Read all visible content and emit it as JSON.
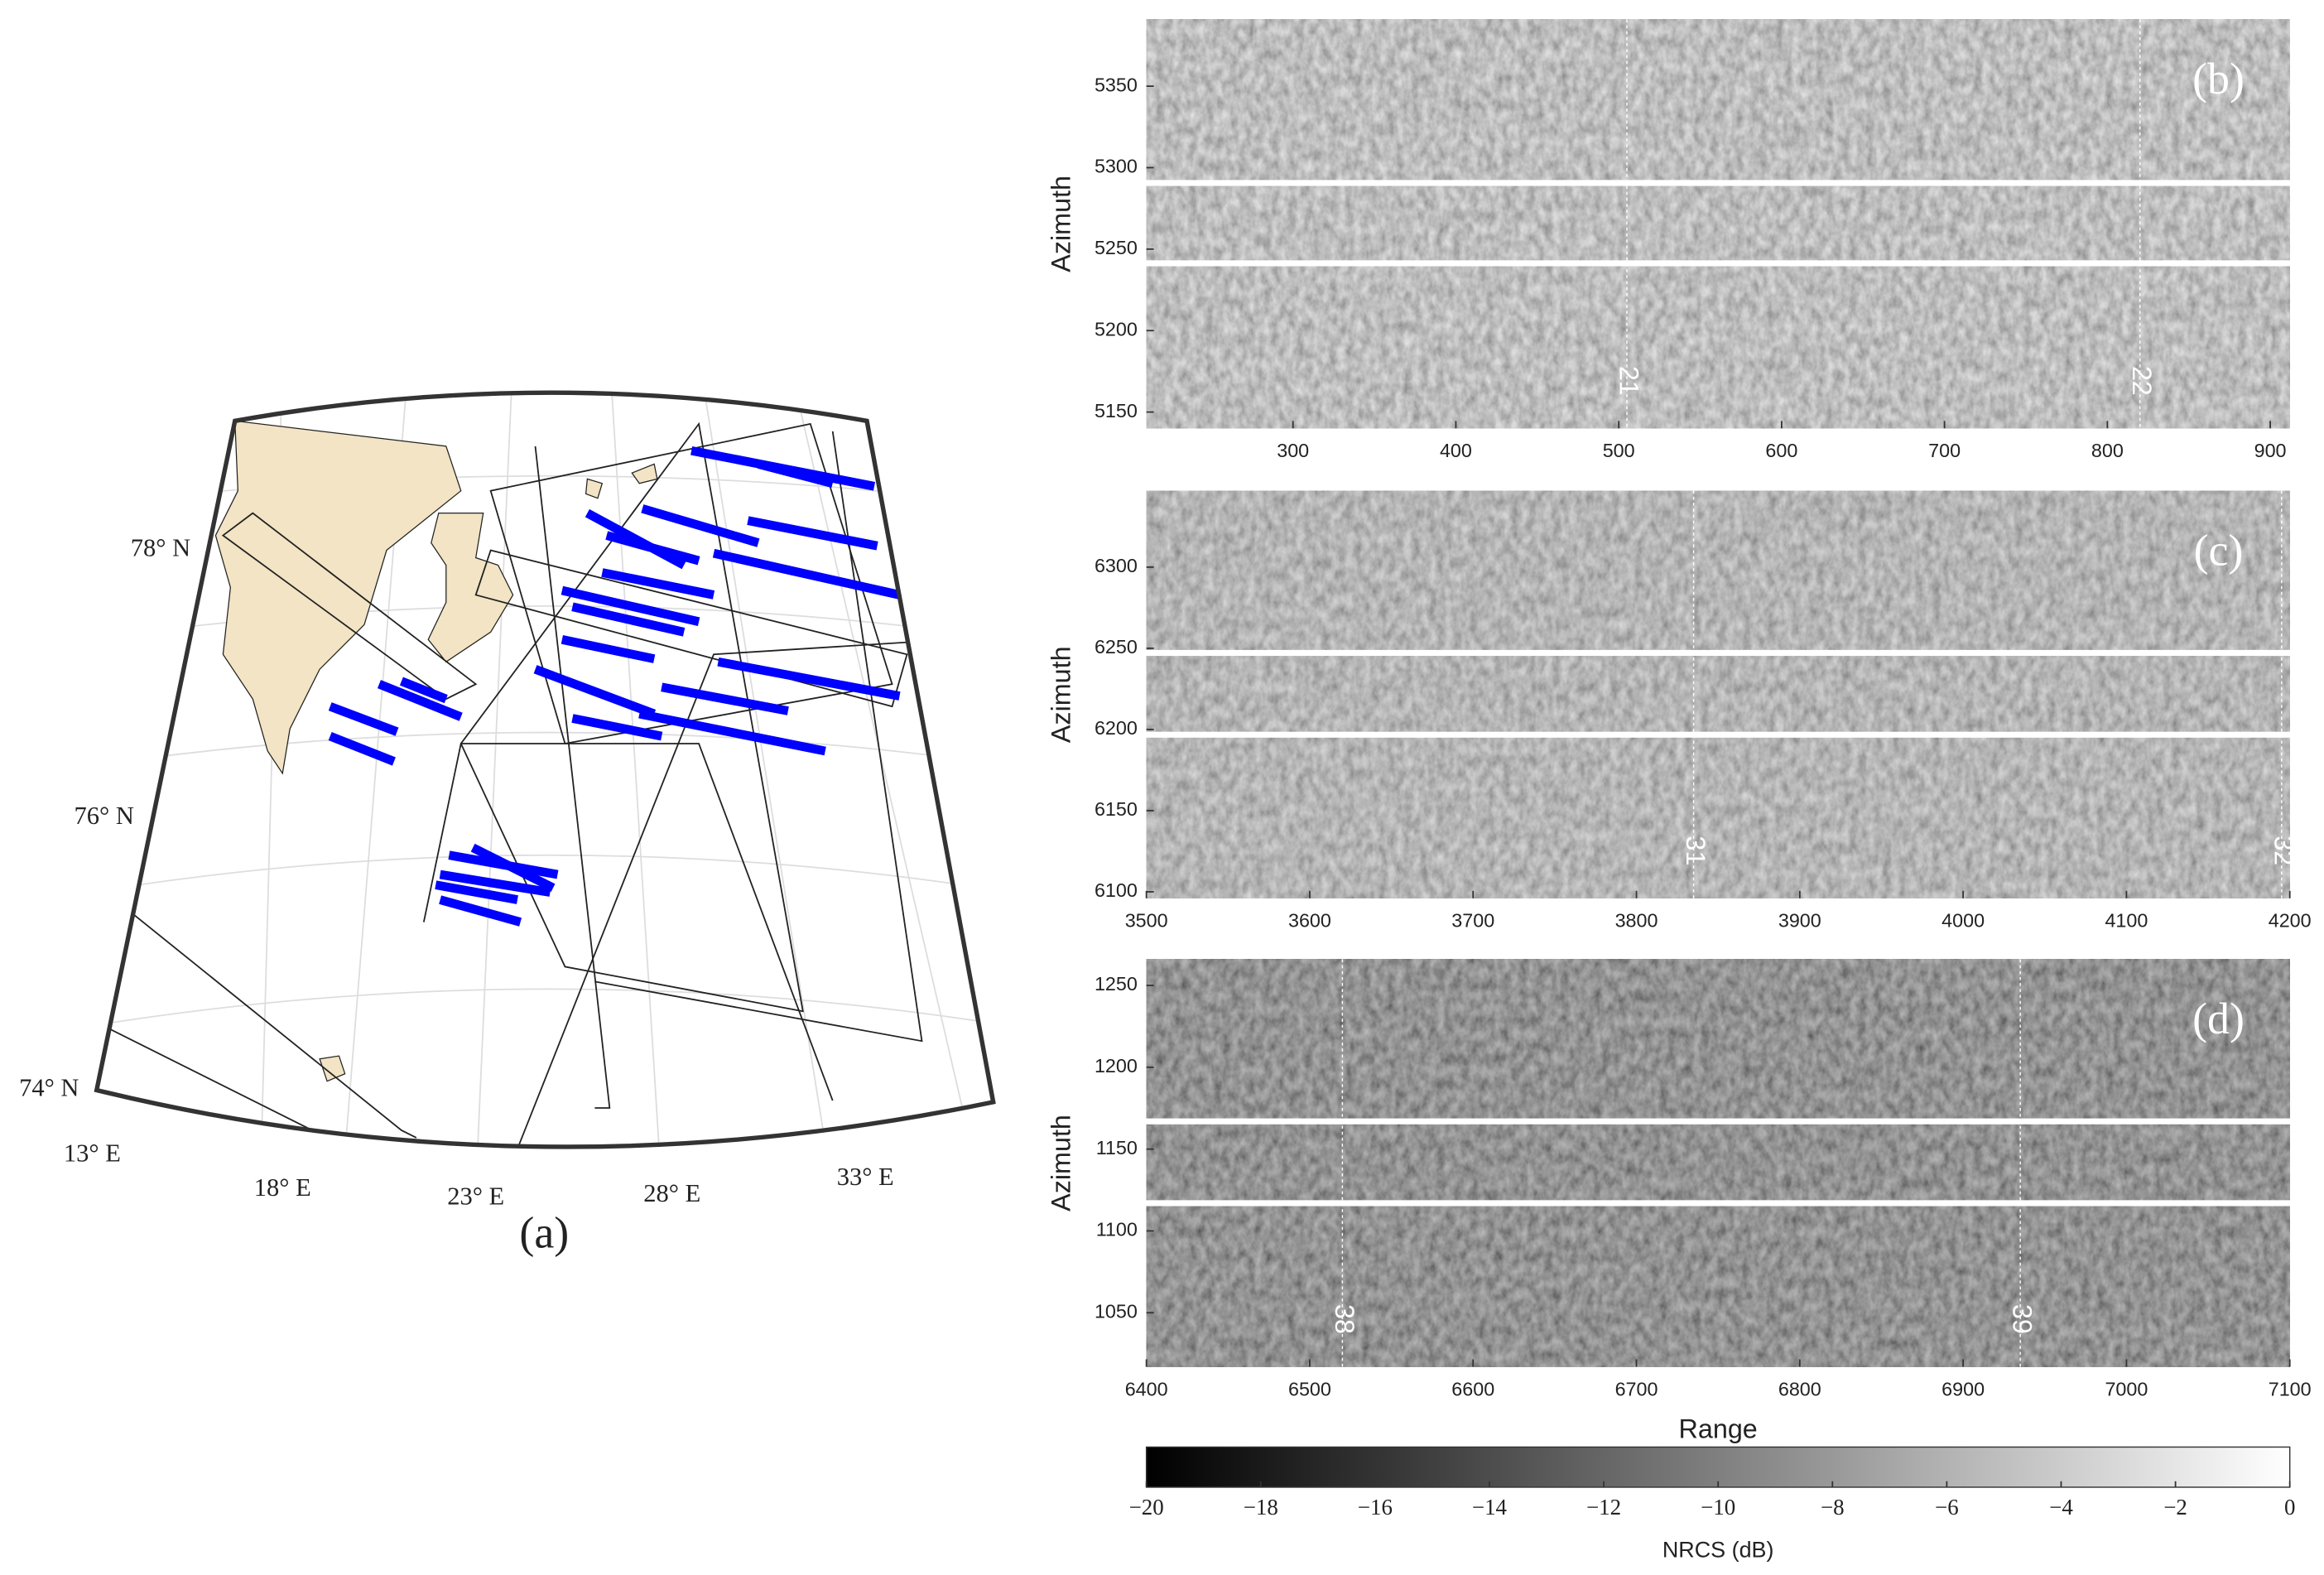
{
  "map": {
    "panel_label": "(a)",
    "lat_labels": [
      "78° N",
      "76° N",
      "74° N"
    ],
    "lon_labels": [
      "13° E",
      "18° E",
      "23° E",
      "28° E",
      "33° E"
    ]
  },
  "chart_data": [
    {
      "type": "heatmap",
      "panel_label": "(b)",
      "ylabel": "Azimuth",
      "xlim": [
        210,
        912
      ],
      "ylim": [
        5140,
        5391
      ],
      "xticks": [
        300,
        400,
        500,
        600,
        700,
        800,
        900
      ],
      "yticks": [
        5150,
        5200,
        5250,
        5300,
        5350
      ],
      "markers": [
        {
          "value": 505,
          "label": "21"
        },
        {
          "value": 820,
          "label": "22"
        }
      ]
    },
    {
      "type": "heatmap",
      "panel_label": "(c)",
      "ylabel": "Azimuth",
      "xlim": [
        3500,
        4200
      ],
      "ylim": [
        6096,
        6347
      ],
      "xticks": [
        3500,
        3600,
        3700,
        3800,
        3900,
        4000,
        4100,
        4200
      ],
      "yticks": [
        6100,
        6150,
        6200,
        6250,
        6300
      ],
      "markers": [
        {
          "value": 3835,
          "label": "31"
        },
        {
          "value": 4195,
          "label": "32"
        }
      ]
    },
    {
      "type": "heatmap",
      "panel_label": "(d)",
      "ylabel": "Azimuth",
      "xlabel": "Range",
      "xlim": [
        6400,
        7100
      ],
      "ylim": [
        1017,
        1266
      ],
      "xticks": [
        6400,
        6500,
        6600,
        6700,
        6800,
        6900,
        7000,
        7100
      ],
      "yticks": [
        1050,
        1100,
        1150,
        1200,
        1250
      ],
      "markers": [
        {
          "value": 6520,
          "label": "38"
        },
        {
          "value": 6935,
          "label": "39"
        }
      ]
    }
  ],
  "colorbar": {
    "label": "NRCS (dB)",
    "lim": [
      -20,
      0
    ],
    "ticks": [
      {
        "value": -20,
        "label": "−20"
      },
      {
        "value": -18,
        "label": "−18"
      },
      {
        "value": -16,
        "label": "−16"
      },
      {
        "value": -14,
        "label": "−14"
      },
      {
        "value": -12,
        "label": "−12"
      },
      {
        "value": -10,
        "label": "−10"
      },
      {
        "value": -8,
        "label": "−8"
      },
      {
        "value": -6,
        "label": "−6"
      },
      {
        "value": -4,
        "label": "−4"
      },
      {
        "value": -2,
        "label": "−2"
      },
      0
    ]
  }
}
